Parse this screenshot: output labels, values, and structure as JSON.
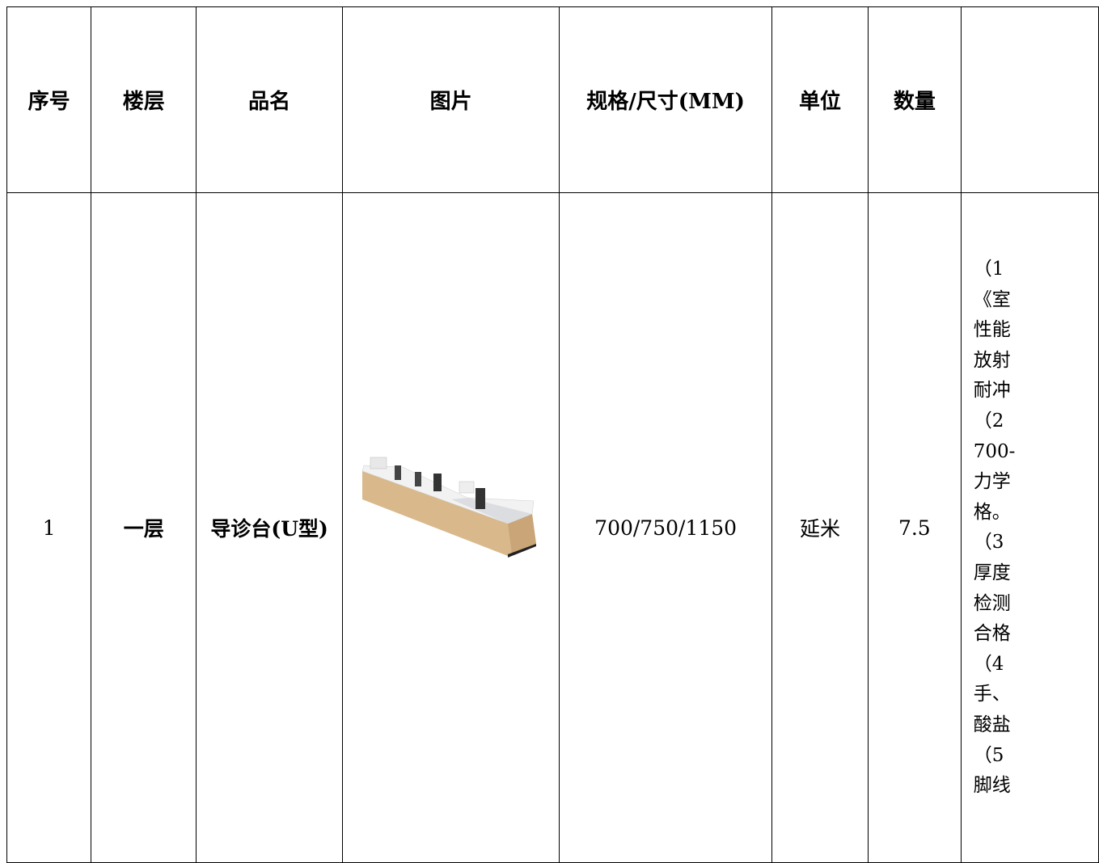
{
  "table": {
    "header": [
      "序号",
      "楼层",
      "品名",
      "图片",
      "规格/尺寸(MM)",
      "单位",
      "数量"
    ],
    "rows": [
      {
        "index": "1",
        "floor": "一层",
        "name": "导诊台(U型)",
        "spec": "700/750/1150",
        "unit": "延米",
        "quantity": "7.5",
        "description_lines": [
          "（1",
          "《室",
          "性能",
          "放射",
          "耐冲",
          "（2",
          "700-",
          "力学",
          "格。",
          "（3",
          "厚度",
          "检测",
          "合格",
          "（4",
          "手、",
          "酸盐",
          "（5",
          "脚线"
        ]
      }
    ]
  }
}
